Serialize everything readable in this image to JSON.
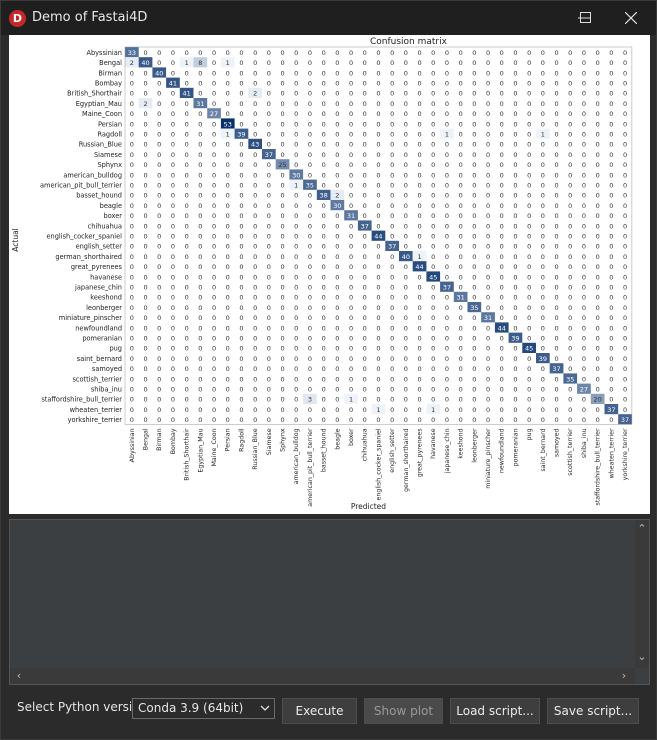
{
  "window": {
    "title": "Demo of Fastai4D",
    "icon_letter": "D",
    "controls": [
      "minimize",
      "maximize",
      "close"
    ]
  },
  "toolbar": {
    "python_label": "Select Python version :",
    "python_selected": "Conda 3.9 (64bit)",
    "execute_label": "Execute",
    "show_plot_label": "Show plot",
    "load_script_label": "Load script...",
    "save_script_label": "Save script..."
  },
  "output": {
    "text": ""
  },
  "chart_data": {
    "type": "heatmap",
    "title": "Confusion matrix",
    "xlabel": "Predicted",
    "ylabel": "Actual",
    "colormap": "Blues",
    "labels": [
      "Abyssinian",
      "Bengal",
      "Birman",
      "Bombay",
      "British_Shorthair",
      "Egyptian_Mau",
      "Maine_Coon",
      "Persian",
      "Ragdoll",
      "Russian_Blue",
      "Siamese",
      "Sphynx",
      "american_bulldog",
      "american_pit_bull_terrier",
      "basset_hound",
      "beagle",
      "boxer",
      "chihuahua",
      "english_cocker_spaniel",
      "english_setter",
      "german_shorthaired",
      "great_pyrenees",
      "havanese",
      "japanese_chin",
      "keeshond",
      "leonberger",
      "miniature_pinscher",
      "newfoundland",
      "pomeranian",
      "pug",
      "saint_bernard",
      "samoyed",
      "scottish_terrier",
      "shiba_inu",
      "staffordshire_bull_terrier",
      "wheaten_terrier",
      "yorkshire_terrier"
    ],
    "diagonal": [
      33,
      40,
      40,
      41,
      41,
      31,
      27,
      53,
      39,
      43,
      37,
      25,
      30,
      35,
      38,
      30,
      31,
      37,
      44,
      37,
      40,
      44,
      45,
      37,
      31,
      35,
      31,
      44,
      39,
      45,
      39,
      37,
      35,
      27,
      20,
      37,
      37
    ],
    "off_diagonal": [
      [
        1,
        0,
        2
      ],
      [
        1,
        4,
        1
      ],
      [
        1,
        5,
        8
      ],
      [
        1,
        7,
        1
      ],
      [
        4,
        9,
        2
      ],
      [
        5,
        1,
        2
      ],
      [
        8,
        7,
        1
      ],
      [
        8,
        23,
        1
      ],
      [
        8,
        30,
        1
      ],
      [
        13,
        12,
        1
      ],
      [
        14,
        15,
        2
      ],
      [
        20,
        21,
        1
      ],
      [
        34,
        13,
        3
      ],
      [
        34,
        16,
        1
      ],
      [
        35,
        18,
        1
      ],
      [
        35,
        22,
        1
      ]
    ]
  }
}
